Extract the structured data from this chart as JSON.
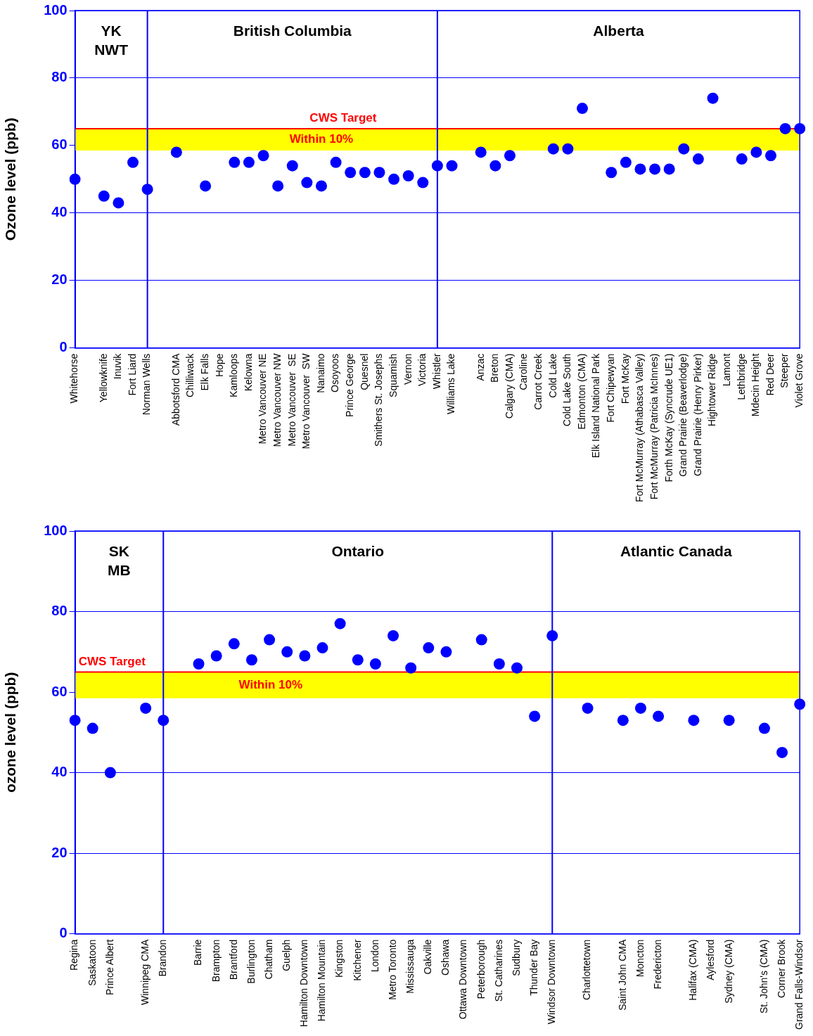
{
  "chart_data": [
    {
      "type": "scatter",
      "ylabel": "Ozone level (ppb)",
      "categories": [
        "Whitehorse",
        null,
        "Yellowknife",
        "Inuvik",
        "Fort Liard",
        "Norman Wells",
        null,
        "Abbotsford CMA",
        "Chilliwack",
        "Elk Falls",
        "Hope",
        "Kamloops",
        "Kelowna",
        "Metro Vancouver NE",
        "Metro Vancouver NW",
        "Metro Vancouver  SE",
        "Metro Vancouver  SW",
        "Nanaimo",
        "Osoyoos",
        "Prince George",
        "Quesnel",
        "Smithers St. Josephs",
        "Squamish",
        "Vernon",
        "Victoria",
        "Whistler",
        "Williams Lake",
        null,
        "Anzac",
        "Breton",
        "Calgary (CMA)",
        "Caroline",
        "Carrot Creek",
        "Cold Lake",
        "Cold Lake South",
        "Edmonton (CMA)",
        "Elk Island National Park",
        "Fort Chipewyan",
        "Fort McKay",
        "Fort McMurray (Athabasca Valley)",
        "Fort McMurray (Patricia McInnes)",
        "Forth McKay (Syncrude UE1)",
        "Grand Prairie (Beaverlodge)",
        "Grand Prairie (Henry Pirker)",
        "Hightower Ridge",
        "Lamont",
        "Lethbridge",
        "Mdecin Height",
        "Red Deer",
        "Steeper",
        "Violet Grove"
      ],
      "series": [
        {
          "color": "#0000ff",
          "values": [
            50,
            null,
            45,
            43,
            55,
            47,
            null,
            58,
            null,
            48,
            null,
            55,
            55,
            57,
            48,
            54,
            49,
            48,
            55,
            52,
            52,
            52,
            50,
            51,
            49,
            54,
            54,
            null,
            58,
            54,
            57,
            null,
            null,
            59,
            59,
            71,
            null,
            52,
            55,
            53,
            53,
            53,
            59,
            56,
            74,
            null,
            56,
            58,
            57,
            65,
            65
          ]
        }
      ],
      "ylim": [
        0,
        100
      ],
      "yticks": [
        0,
        20,
        40,
        60,
        80,
        100
      ],
      "grid": "y",
      "legend": false,
      "marker": "circle",
      "ref_lines": [
        {
          "axis": "y",
          "value": 65,
          "label": "CWS Target",
          "color": "#ff0000"
        },
        {
          "axis": "x",
          "value": "Norman Wells",
          "color": "#0000ff"
        },
        {
          "axis": "x",
          "value": "Whistler",
          "color": "#0000ff"
        }
      ],
      "bands": [
        {
          "axis": "y",
          "from": 58.5,
          "to": 65,
          "label": "Within 10%",
          "color": "#ffff00"
        }
      ],
      "annotations": [
        "YK\nNWT",
        "British Columbia",
        "Alberta"
      ]
    },
    {
      "type": "scatter",
      "ylabel": "ozone level (ppb)",
      "categories": [
        "Regina",
        "Saskatoon",
        "Prince Albert",
        null,
        "Winnipeg CMA",
        "Brandon",
        null,
        "Barrie",
        "Brampton",
        "Brantford",
        "Burlington",
        "Chatham",
        "Guelph",
        "Hamilton Downtown",
        "Hamilton Mountain",
        "Kingston",
        "Kitchener",
        "London",
        "Metro Toronto",
        "Mississauga",
        "Oakville",
        "Oshawa",
        "Ottawa Downtown",
        "Peterborough",
        "St. Catharines",
        "Sudbury",
        "Thunder Bay",
        "Windsor Downtown",
        null,
        "Charlottetown",
        null,
        "Saint John CMA",
        "Moncton",
        "Fredericton",
        null,
        "Halifax (CMA)",
        "Aylesford",
        "Sydney (CMA)",
        null,
        "St. John's (CMA)",
        "Corner Brook",
        "Grand Falls-Windsor"
      ],
      "series": [
        {
          "color": "#0000ff",
          "values": [
            53,
            51,
            40,
            null,
            56,
            53,
            null,
            67,
            69,
            72,
            68,
            73,
            70,
            69,
            71,
            77,
            68,
            67,
            74,
            66,
            71,
            70,
            null,
            73,
            67,
            66,
            54,
            74,
            null,
            56,
            null,
            53,
            56,
            54,
            null,
            53,
            null,
            53,
            null,
            51,
            45,
            57
          ]
        }
      ],
      "ylim": [
        0,
        100
      ],
      "yticks": [
        0,
        20,
        40,
        60,
        80,
        100
      ],
      "grid": "y",
      "legend": false,
      "marker": "circle",
      "ref_lines": [
        {
          "axis": "y",
          "value": 65,
          "label": "CWS Target",
          "color": "#ff0000"
        },
        {
          "axis": "x",
          "value": "Brandon",
          "color": "#0000ff"
        },
        {
          "axis": "x",
          "value": "Windsor Downtown",
          "color": "#0000ff"
        }
      ],
      "bands": [
        {
          "axis": "y",
          "from": 58.5,
          "to": 65,
          "label": "Within 10%",
          "color": "#ffff00"
        }
      ],
      "annotations": [
        "SK\nMB",
        "Ontario",
        "Atlantic Canada"
      ]
    }
  ]
}
